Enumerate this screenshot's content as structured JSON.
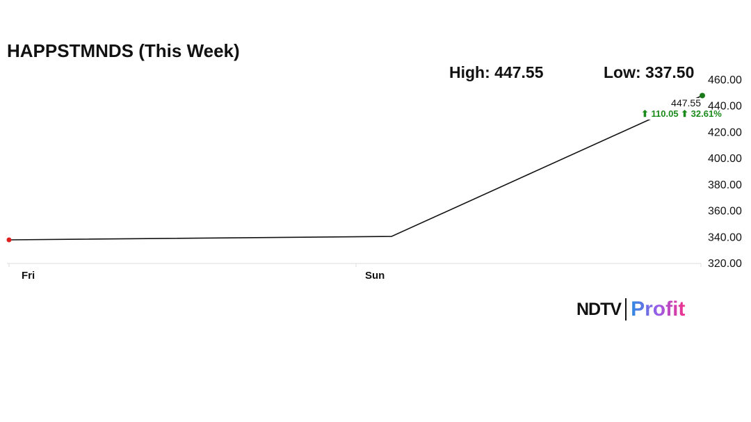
{
  "chart_data": {
    "type": "line",
    "title": "HAPPSTMNDS (This Week)",
    "high_label": "High: 447.55",
    "low_label": "Low: 337.50",
    "x_tick_labels": [
      "Fri",
      "Sun"
    ],
    "points": [
      {
        "x": "Fri",
        "y": 337.5
      },
      {
        "x": "Sun",
        "y": 340.1
      },
      {
        "x": "",
        "y": 447.55
      }
    ],
    "ylim": [
      320,
      460
    ],
    "y_ticks": [
      "460.00",
      "440.00",
      "420.00",
      "400.00",
      "380.00",
      "360.00",
      "340.00",
      "320.00"
    ],
    "last_value_label": "447.55",
    "change_label": "⬆ 110.05 ⬆ 32.61%",
    "colors": {
      "line": "#111111",
      "start_marker": "#e02020",
      "end_marker": "#1a7a1a",
      "change": "#1a8a1a",
      "axis": "#dddddd"
    },
    "grid": false
  },
  "logo": {
    "ndtv": "NDTV",
    "profit": "Profit"
  }
}
